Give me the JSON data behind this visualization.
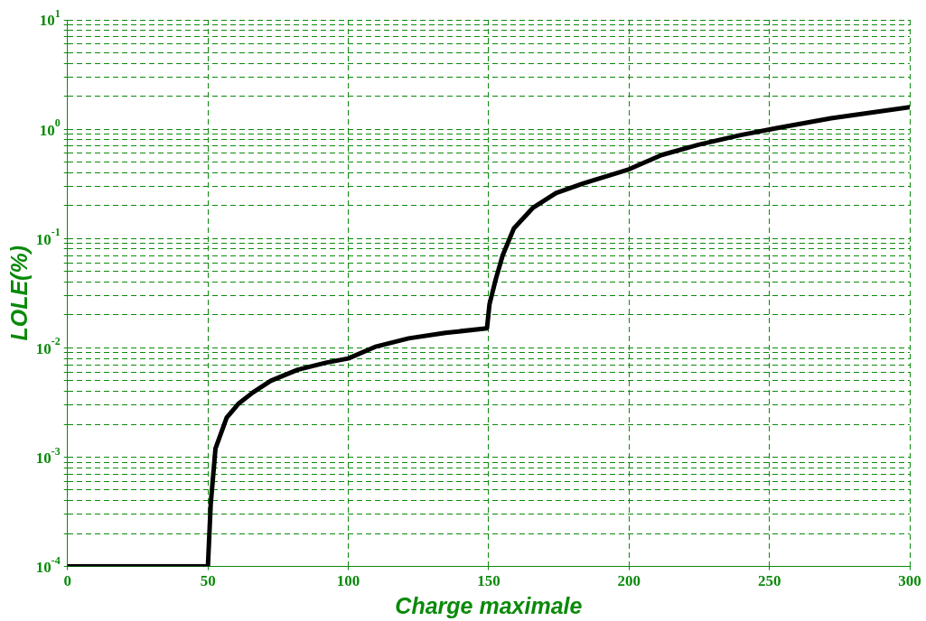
{
  "chart_data": {
    "type": "line",
    "xlabel": "Charge maximale",
    "ylabel": "LOLE(%)",
    "log": "y",
    "grid": true,
    "legend": false,
    "marker": "none",
    "line_style": "solid",
    "xlim": [
      0,
      300
    ],
    "xticks": [
      0,
      50,
      100,
      150,
      200,
      250,
      300
    ],
    "ylim": [
      0.0001,
      10
    ],
    "yticks": [
      {
        "value": 0.0001,
        "label": "10$^{-4}$"
      },
      {
        "value": 0.0002,
        "label": null
      },
      {
        "value": 0.0003,
        "label": null
      },
      {
        "value": 0.0004,
        "label": null
      },
      {
        "value": 0.0005,
        "label": null
      },
      {
        "value": 0.0006,
        "label": null
      },
      {
        "value": 0.0007,
        "label": null
      },
      {
        "value": 0.0008,
        "label": null
      },
      {
        "value": 0.0009,
        "label": null
      },
      {
        "value": 0.001,
        "label": "10$^{-3}$"
      },
      {
        "value": 0.002,
        "label": null
      },
      {
        "value": 0.003,
        "label": null
      },
      {
        "value": 0.004,
        "label": null
      },
      {
        "value": 0.005,
        "label": null
      },
      {
        "value": 0.006,
        "label": null
      },
      {
        "value": 0.007,
        "label": null
      },
      {
        "value": 0.008,
        "label": null
      },
      {
        "value": 0.009,
        "label": null
      },
      {
        "value": 0.01,
        "label": "10$^{-2}$"
      },
      {
        "value": 0.02,
        "label": null
      },
      {
        "value": 0.03,
        "label": null
      },
      {
        "value": 0.04,
        "label": null
      },
      {
        "value": 0.05,
        "label": null
      },
      {
        "value": 0.06,
        "label": null
      },
      {
        "value": 0.07,
        "label": null
      },
      {
        "value": 0.08,
        "label": null
      },
      {
        "value": 0.09,
        "label": null
      },
      {
        "value": 0.1,
        "label": "10$^{-1}$"
      },
      {
        "value": 0.2,
        "label": null
      },
      {
        "value": 0.3,
        "label": null
      },
      {
        "value": 0.4,
        "label": null
      },
      {
        "value": 0.5,
        "label": null
      },
      {
        "value": 0.6,
        "label": null
      },
      {
        "value": 0.7,
        "label": null
      },
      {
        "value": 0.8,
        "label": null
      },
      {
        "value": 0.9,
        "label": null
      },
      {
        "value": 1,
        "label": "10$^{0}$"
      },
      {
        "value": 2,
        "label": null
      },
      {
        "value": 3,
        "label": null
      },
      {
        "value": 4,
        "label": null
      },
      {
        "value": 5,
        "label": null
      },
      {
        "value": 6,
        "label": null
      },
      {
        "value": 7,
        "label": null
      },
      {
        "value": 8,
        "label": null
      },
      {
        "value": 9,
        "label": null
      },
      {
        "value": 10,
        "label": "10$^{1}$"
      }
    ],
    "series": [
      {
        "color": "#000000",
        "x": [
          0,
          10,
          20,
          30,
          40,
          50,
          51,
          52.7,
          56.7,
          61,
          66,
          72.4,
          82,
          92,
          100,
          110,
          121.5,
          134.6,
          149.4,
          150.3,
          152.6,
          155,
          159,
          165.7,
          174,
          183.8,
          200,
          211.6,
          224.7,
          239.4,
          252.5,
          272,
          300
        ],
        "values": [
          0.0001,
          0.0001,
          0.0001,
          0.0001,
          0.0001,
          0.0001,
          0.00037,
          0.0012,
          0.0023,
          0.0031,
          0.0039,
          0.005,
          0.0063,
          0.0073,
          0.008,
          0.0103,
          0.0122,
          0.0137,
          0.0151,
          0.025,
          0.043,
          0.07,
          0.124,
          0.19,
          0.26,
          0.32,
          0.43,
          0.58,
          0.72,
          0.88,
          1.02,
          1.26,
          1.59
        ]
      }
    ]
  }
}
